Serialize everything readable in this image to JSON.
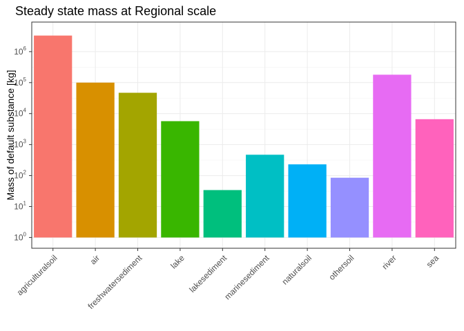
{
  "chart_data": {
    "type": "bar",
    "title": "Steady state mass at Regional scale",
    "xlabel": "",
    "ylabel": "Mass of default substance [kg]",
    "y_scale": "log10",
    "y_ticks": [
      {
        "value": 1,
        "base": "10",
        "exp": "0"
      },
      {
        "value": 10,
        "base": "10",
        "exp": "1"
      },
      {
        "value": 100,
        "base": "10",
        "exp": "2"
      },
      {
        "value": 1000,
        "base": "10",
        "exp": "3"
      },
      {
        "value": 10000,
        "base": "10",
        "exp": "4"
      },
      {
        "value": 100000,
        "base": "10",
        "exp": "5"
      },
      {
        "value": 1000000,
        "base": "10",
        "exp": "6"
      }
    ],
    "ylim": [
      0.45,
      9000000
    ],
    "categories": [
      "agriculturalsoil",
      "air",
      "freshwatersediment",
      "lake",
      "lakesediment",
      "marinesediment",
      "naturalsoil",
      "othersoil",
      "river",
      "sea"
    ],
    "values": [
      3300000,
      100000,
      47000,
      5700,
      34,
      470,
      230,
      85,
      180000,
      6600
    ],
    "colors": [
      "#F8766D",
      "#D89000",
      "#A3A500",
      "#39B600",
      "#00BF7D",
      "#00BFC4",
      "#00B0F6",
      "#9590FF",
      "#E76BF3",
      "#FF62BC"
    ],
    "grid": true,
    "legend": "none"
  }
}
